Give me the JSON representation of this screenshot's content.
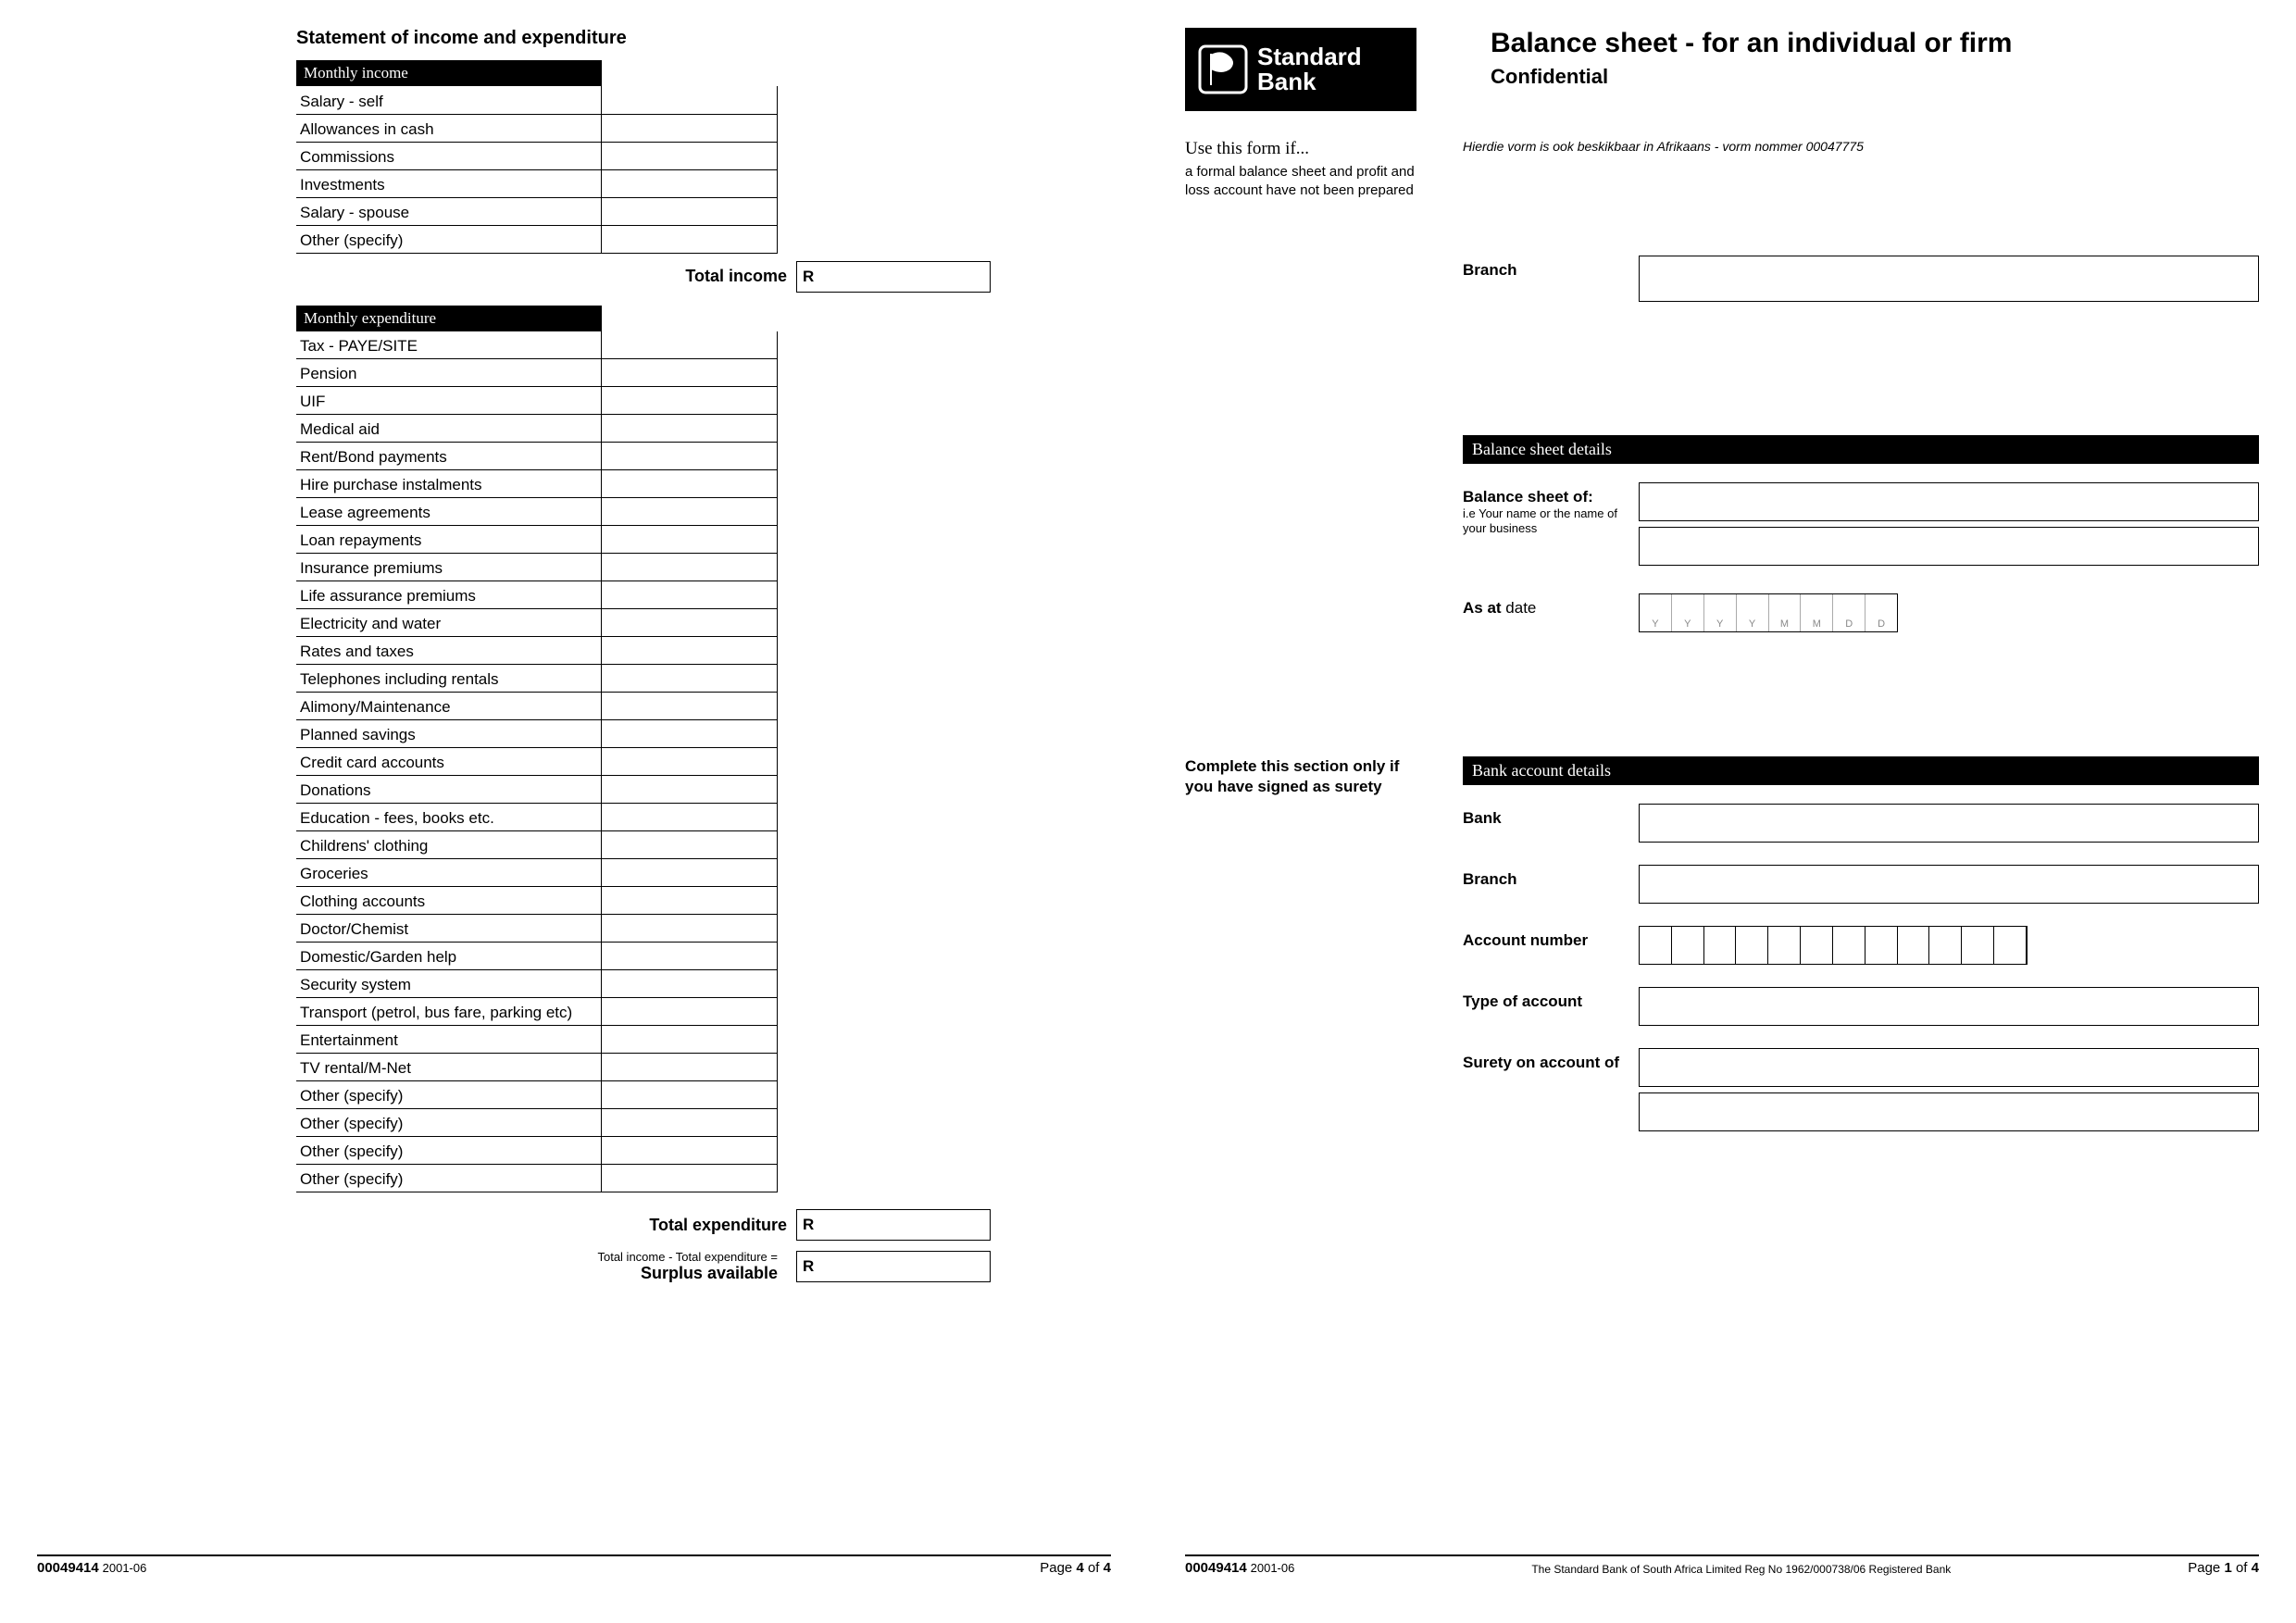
{
  "colors": {
    "text": "#000000",
    "bg": "#ffffff",
    "header_bg": "#000000",
    "header_fg": "#ffffff",
    "tick_border": "#aaaaaa",
    "ph": "#888888"
  },
  "left": {
    "title": "Statement of income and expenditure",
    "income_header": "Monthly income",
    "income_rows": [
      "Salary - self",
      "Allowances in cash",
      "Commissions",
      "Investments",
      "Salary - spouse",
      "Other (specify)"
    ],
    "total_income_label": "Total income",
    "currency": "R",
    "expend_header": "Monthly expenditure",
    "expend_rows": [
      "Tax - PAYE/SITE",
      "Pension",
      "UIF",
      "Medical aid",
      "Rent/Bond payments",
      "Hire purchase instalments",
      "Lease agreements",
      "Loan repayments",
      "Insurance premiums",
      "Life assurance premiums",
      "Electricity and water",
      "Rates and taxes",
      "Telephones including rentals",
      "Alimony/Maintenance",
      "Planned savings",
      "Credit card accounts",
      "Donations",
      "Education - fees, books etc.",
      "Childrens' clothing",
      "Groceries",
      "Clothing accounts",
      "Doctor/Chemist",
      "Domestic/Garden help",
      "Security system",
      "Transport (petrol, bus fare, parking etc)",
      "Entertainment",
      "TV rental/M-Net",
      "Other (specify)",
      "Other (specify)",
      "Other (specify)",
      "Other (specify)"
    ],
    "total_expend_label": "Total expenditure",
    "surplus_sub": "Total income - Total expenditure =",
    "surplus_label": "Surplus available"
  },
  "right": {
    "bank_name_l1": "Standard",
    "bank_name_l2": "Bank",
    "title": "Balance sheet - for an individual or firm",
    "subtitle": "Confidential",
    "use_h": "Use this form if...",
    "use_body": "a formal balance sheet and profit and loss account have not been prepared",
    "afrikaans": "Hierdie vorm is ook beskikbaar in Afrikaans - vorm nommer 00047775",
    "branch_label": "Branch",
    "bsd_header": "Balance sheet details",
    "bs_of_label": "Balance sheet of:",
    "bs_of_sub": "i.e Your name or the name of your business",
    "asat_label_b": "As at",
    "asat_label_l": " date",
    "date_ph": [
      "Y",
      "Y",
      "Y",
      "Y",
      "M",
      "M",
      "D",
      "D"
    ],
    "surety_note": "Complete this section only if you have signed as surety",
    "bad_header": "Bank account details",
    "bank_label": "Bank",
    "branch2_label": "Branch",
    "acct_label": "Account number",
    "acct_cells": 12,
    "type_label": "Type of account",
    "surety_label": "Surety on account of"
  },
  "footer": {
    "form_no": "00049414",
    "form_date": "2001-06",
    "reg": "The Standard Bank of South Africa Limited Reg No 1962/000738/06 Registered Bank",
    "p4": "Page 4 of 4",
    "p1": "Page 1 of 4",
    "page_word": "Page",
    "of_word": "of",
    "p4_cur": "4",
    "p4_tot": "4",
    "p1_cur": "1",
    "p1_tot": "4"
  }
}
